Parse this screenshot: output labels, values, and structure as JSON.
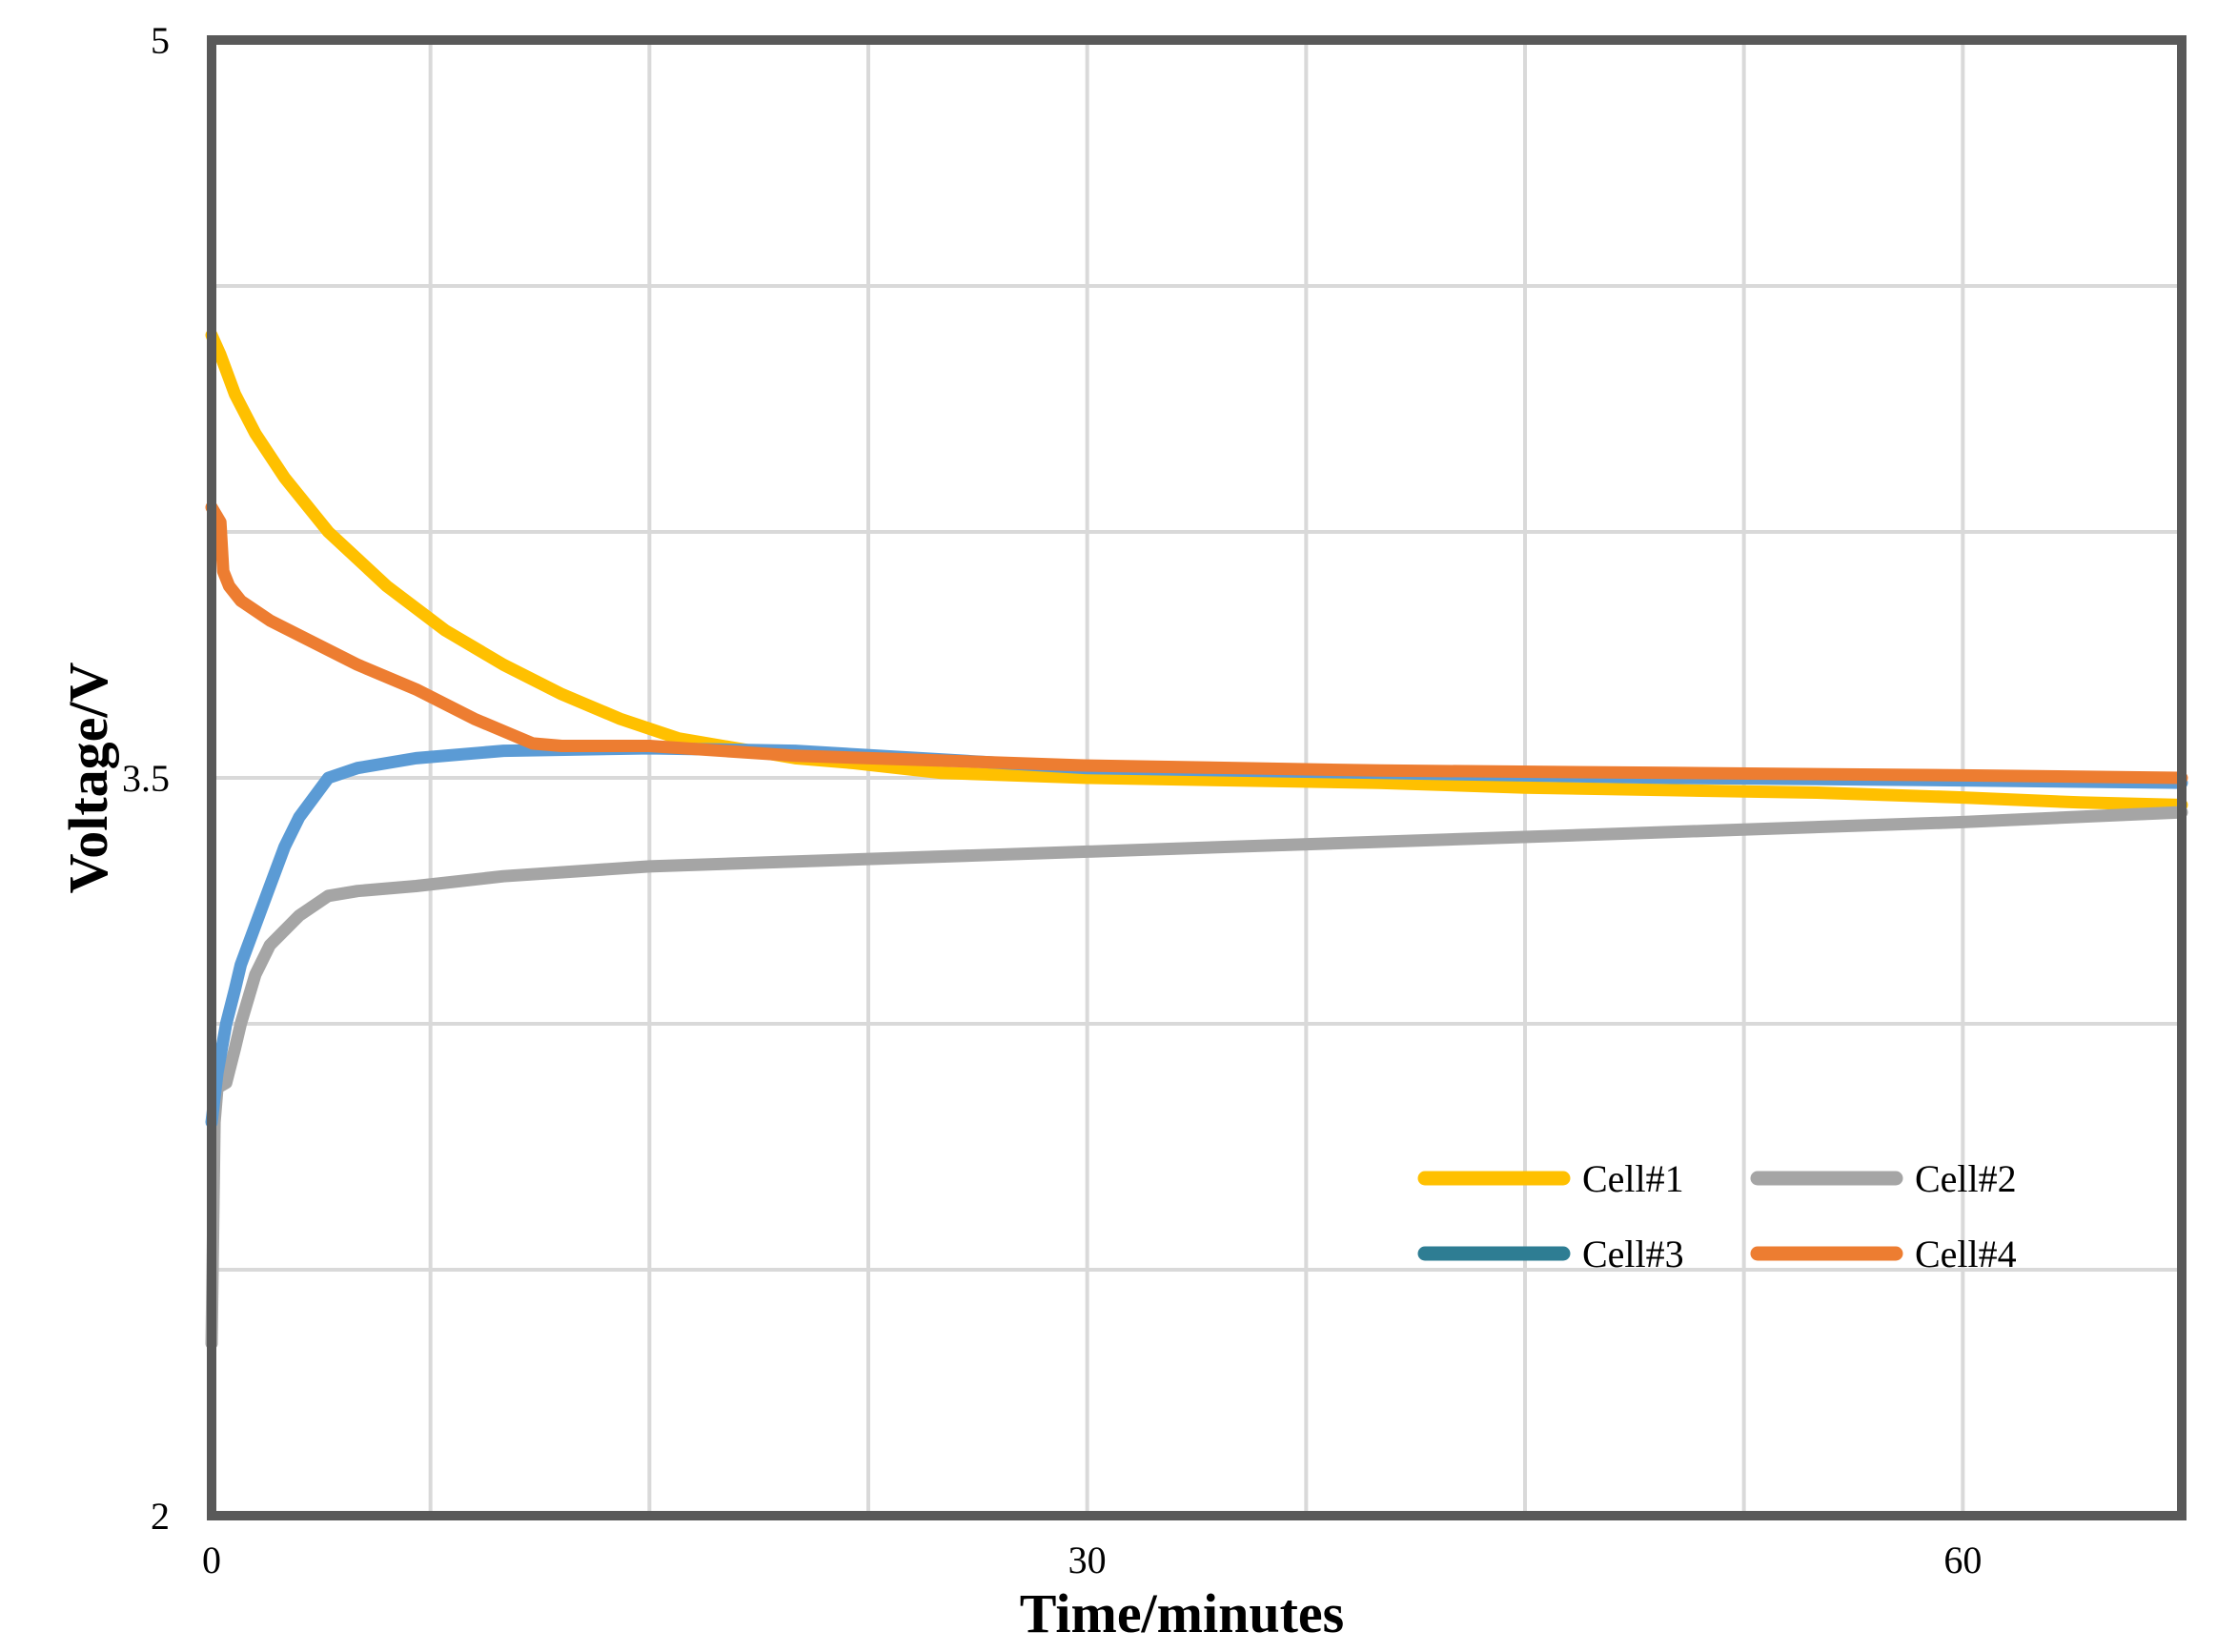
{
  "chart_data": {
    "type": "line",
    "title": "",
    "xlabel": "Time/minutes",
    "ylabel": "Voltage/V",
    "xlim": [
      0,
      67.5
    ],
    "ylim": [
      2,
      5
    ],
    "x_tick_values": [
      0,
      7.5,
      15,
      22.5,
      30,
      37.5,
      45,
      52.5,
      60,
      67.5
    ],
    "y_tick_values": [
      2,
      2.5,
      3,
      3.5,
      4,
      4.5,
      5
    ],
    "x_tick_labels": [
      "0",
      "30",
      "60"
    ],
    "y_tick_labels": [
      "2",
      "3.5",
      "5"
    ],
    "grid": true,
    "legend_position": "bottom-right",
    "series": [
      {
        "name": "Cell#1",
        "color": "#FFC000",
        "x": [
          0,
          0.3,
          0.8,
          1.5,
          2.5,
          4,
          6,
          8,
          10,
          12,
          14,
          16,
          18,
          20,
          22,
          25,
          30,
          35,
          40,
          45,
          50,
          55,
          60,
          64,
          67.5
        ],
        "y": [
          4.4,
          4.36,
          4.28,
          4.2,
          4.11,
          4.0,
          3.89,
          3.8,
          3.73,
          3.67,
          3.62,
          3.58,
          3.56,
          3.54,
          3.53,
          3.51,
          3.5,
          3.495,
          3.49,
          3.48,
          3.475,
          3.47,
          3.46,
          3.45,
          3.445
        ]
      },
      {
        "name": "Cell#2",
        "color": "#A5A5A5",
        "x": [
          0,
          0.1,
          0.2,
          0.5,
          0.8,
          1,
          1.5,
          2,
          3,
          4,
          5,
          7,
          10,
          15,
          20,
          30,
          40,
          50,
          60,
          67.5
        ],
        "y": [
          2.35,
          2.8,
          2.87,
          2.88,
          2.95,
          3.0,
          3.1,
          3.16,
          3.22,
          3.26,
          3.27,
          3.28,
          3.3,
          3.32,
          3.33,
          3.35,
          3.37,
          3.39,
          3.41,
          3.43
        ]
      },
      {
        "name": "Cell#3",
        "color": "#5B9BD5",
        "legend_color": "#2E7D93",
        "x": [
          0,
          0.2,
          0.5,
          0.8,
          1,
          1.5,
          2,
          2.5,
          3,
          4,
          5,
          7,
          10,
          15,
          20,
          30,
          40,
          50,
          60,
          67.5
        ],
        "y": [
          2.8,
          2.9,
          3.0,
          3.07,
          3.12,
          3.2,
          3.28,
          3.36,
          3.42,
          3.5,
          3.52,
          3.54,
          3.555,
          3.56,
          3.555,
          3.52,
          3.51,
          3.5,
          3.495,
          3.49
        ]
      },
      {
        "name": "Cell#4",
        "color": "#ED7D31",
        "x": [
          0,
          0.3,
          0.4,
          0.6,
          1,
          2,
          3,
          5,
          7,
          9,
          11,
          12,
          15,
          20,
          25,
          30,
          40,
          50,
          60,
          67.5
        ],
        "y": [
          4.05,
          4.02,
          3.92,
          3.89,
          3.86,
          3.82,
          3.79,
          3.73,
          3.68,
          3.62,
          3.57,
          3.565,
          3.565,
          3.545,
          3.535,
          3.525,
          3.515,
          3.51,
          3.505,
          3.5
        ]
      }
    ]
  }
}
